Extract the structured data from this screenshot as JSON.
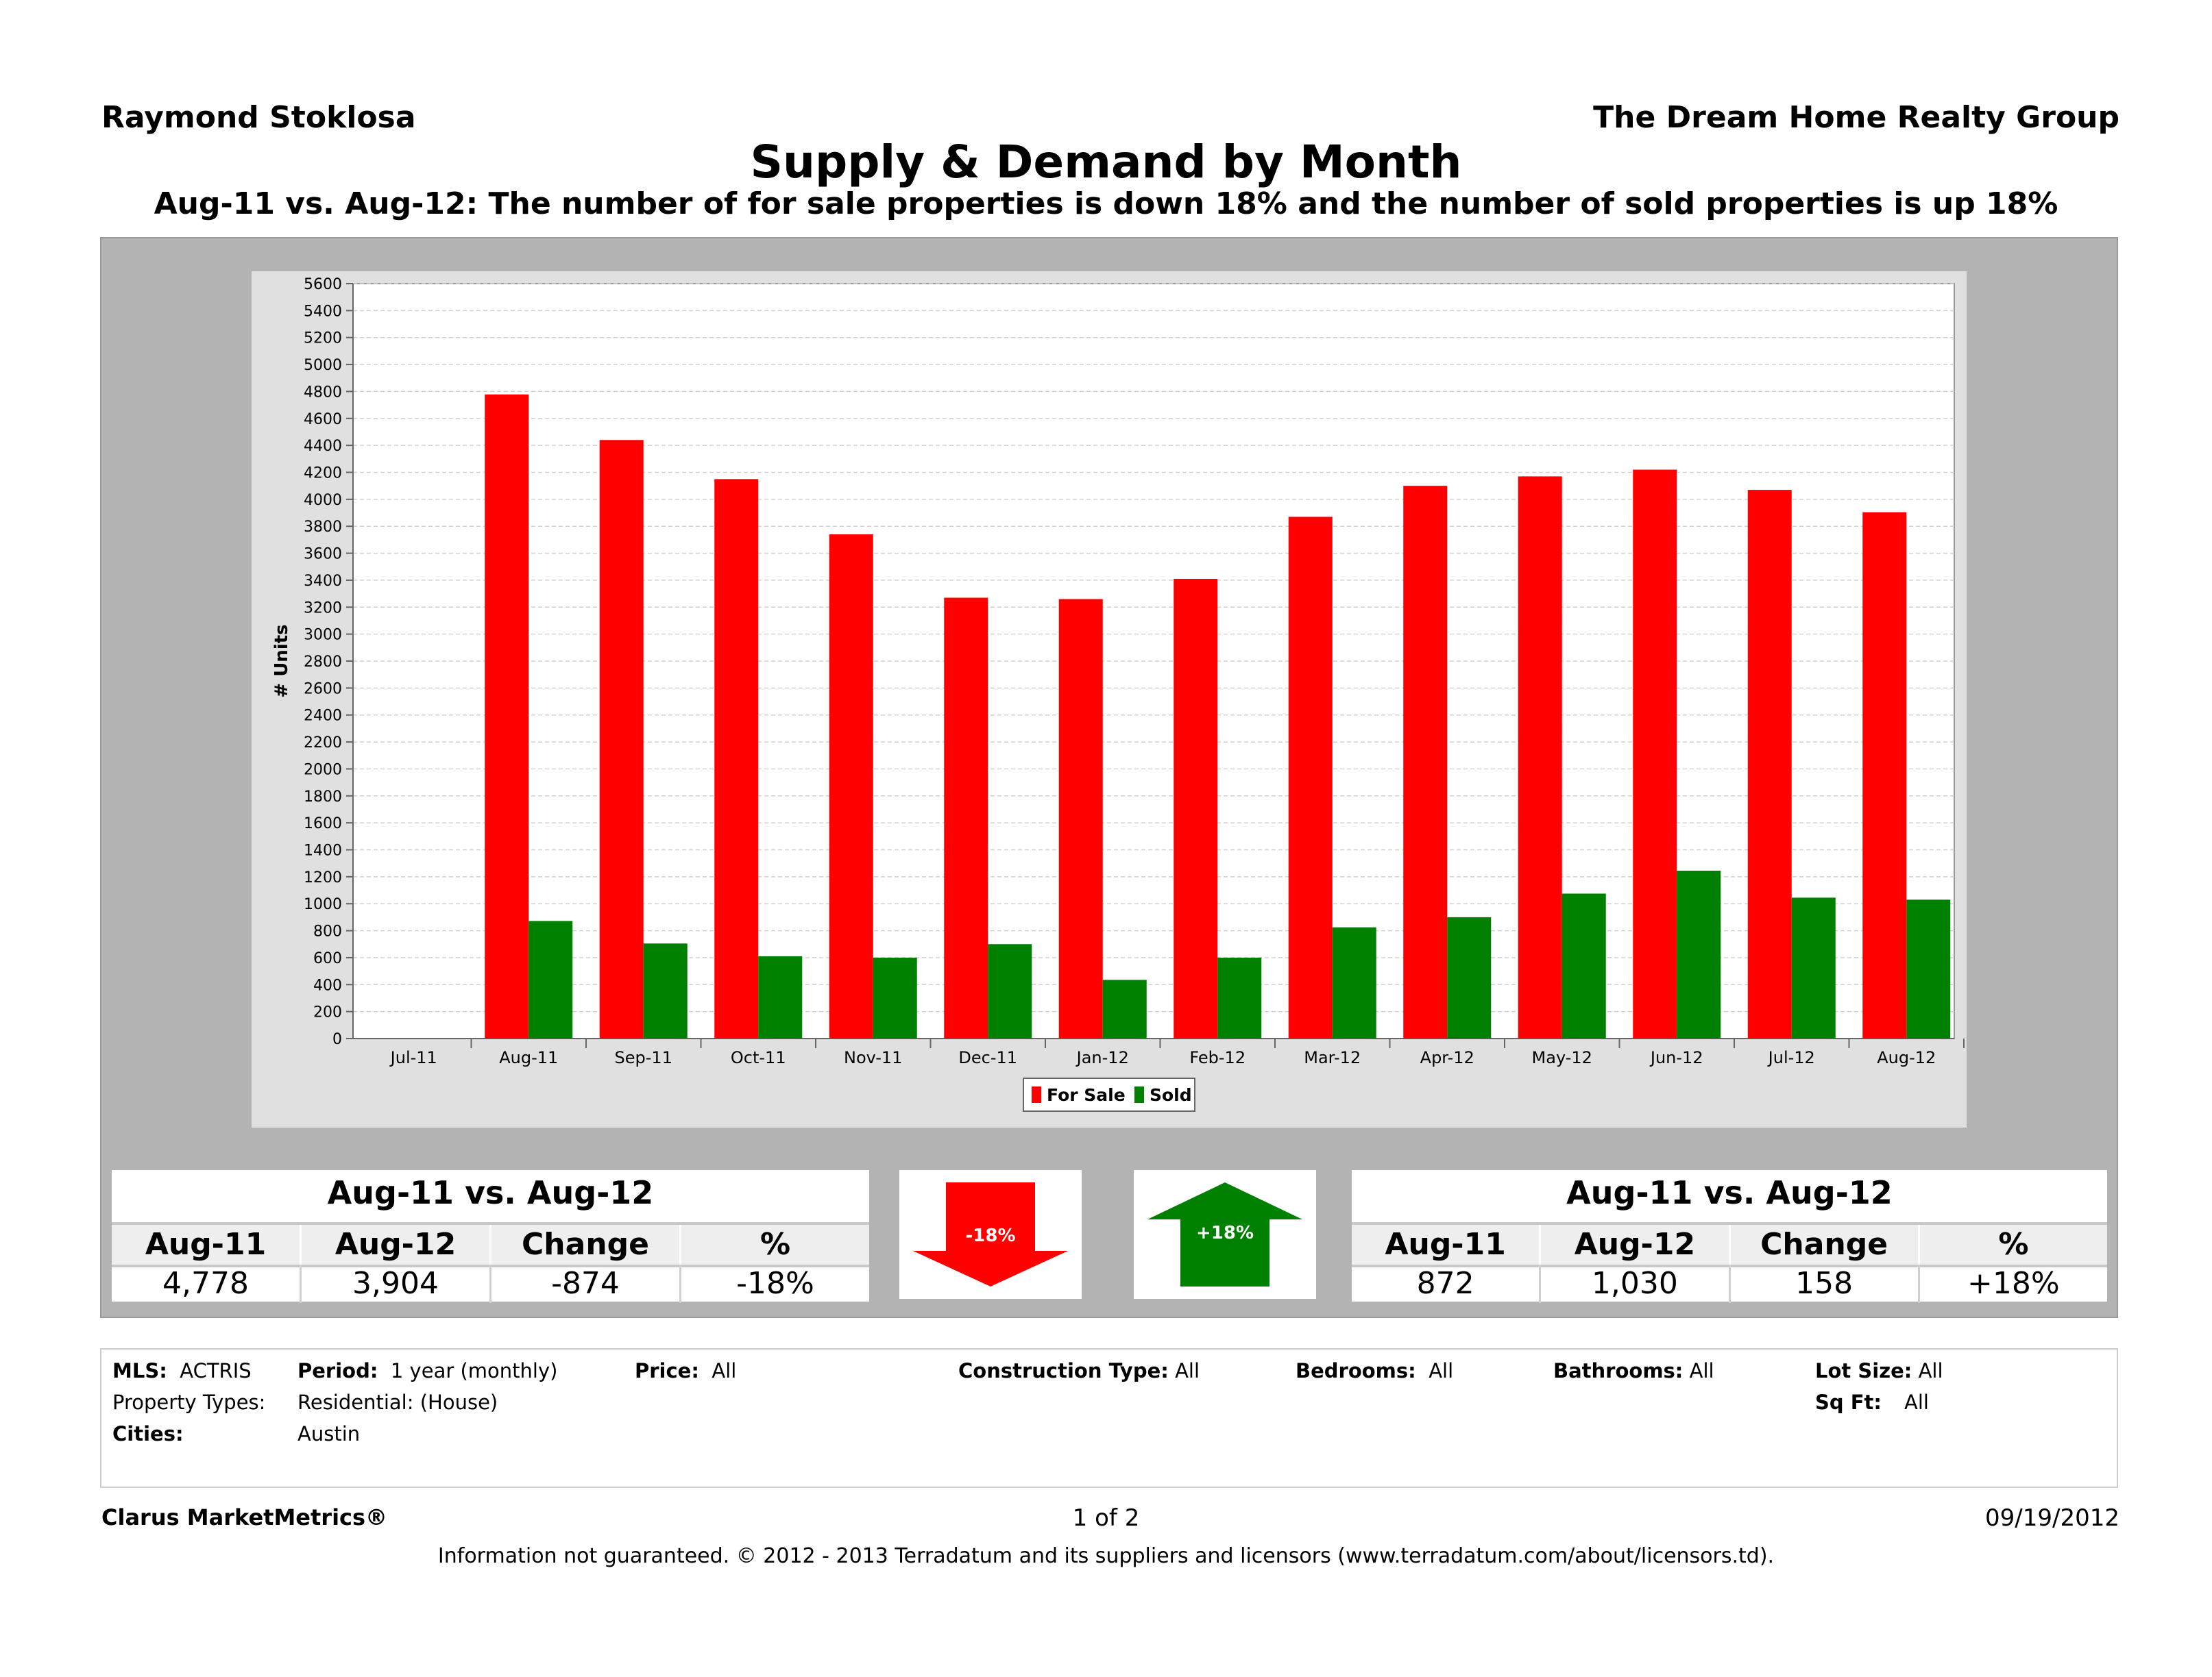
{
  "header": {
    "agent": "Raymond Stoklosa",
    "company": "The Dream Home Realty Group",
    "title": "Supply & Demand by Month",
    "subtitle": "Aug-11 vs. Aug-12:  The number of for sale properties is down 18% and the number of sold properties is up 18%"
  },
  "colors": {
    "for_sale": "#ff0000",
    "sold": "#008000",
    "panel": "#b3b3b3",
    "plot_bg": "#ffffff"
  },
  "chart_data": {
    "type": "bar",
    "ylabel": "# Units",
    "ylim": [
      0,
      5600
    ],
    "yticks": [
      0,
      200,
      400,
      600,
      800,
      1000,
      1200,
      1400,
      1600,
      1800,
      2000,
      2200,
      2400,
      2600,
      2800,
      3000,
      3200,
      3400,
      3600,
      3800,
      4000,
      4200,
      4400,
      4600,
      4800,
      5000,
      5200,
      5400,
      5600
    ],
    "categories": [
      "Jul-11",
      "Aug-11",
      "Sep-11",
      "Oct-11",
      "Nov-11",
      "Dec-11",
      "Jan-12",
      "Feb-12",
      "Mar-12",
      "Apr-12",
      "May-12",
      "Jun-12",
      "Jul-12",
      "Aug-12"
    ],
    "series": [
      {
        "name": "For Sale",
        "color": "#ff0000",
        "values": [
          null,
          4778,
          4440,
          4150,
          3740,
          3270,
          3260,
          3410,
          3870,
          4100,
          4170,
          4220,
          4070,
          3904
        ]
      },
      {
        "name": "Sold",
        "color": "#008000",
        "values": [
          null,
          872,
          705,
          610,
          600,
          700,
          435,
          600,
          825,
          900,
          1075,
          1245,
          1045,
          1030
        ]
      }
    ],
    "legend_position": "bottom",
    "grid": true
  },
  "summary_left": {
    "title": "Aug-11 vs. Aug-12",
    "headers": [
      "Aug-11",
      "Aug-12",
      "Change",
      "%"
    ],
    "values": [
      "4,778",
      "3,904",
      "-874",
      "-18%"
    ]
  },
  "summary_right": {
    "title": "Aug-11 vs. Aug-12",
    "headers": [
      "Aug-11",
      "Aug-12",
      "Change",
      "%"
    ],
    "values": [
      "872",
      "1,030",
      "158",
      "+18%"
    ]
  },
  "arrows": {
    "down_label": "-18%",
    "down_icon": "down-arrow-icon",
    "down_color": "#ff0000",
    "up_label": "+18%",
    "up_icon": "up-arrow-icon",
    "up_color": "#008000"
  },
  "filters": {
    "mls_label": "MLS:",
    "mls_value": "ACTRIS",
    "period_label": "Period:",
    "period_value": "1 year (monthly)",
    "price_label": "Price:",
    "price_value": "All",
    "construction_label": "Construction Type:",
    "construction_value": "All",
    "bedrooms_label": "Bedrooms:",
    "bedrooms_value": "All",
    "bathrooms_label": "Bathrooms:",
    "bathrooms_value": "All",
    "lotsize_label": "Lot Size:",
    "lotsize_value": "All",
    "proptype_label": "Property Types:",
    "proptype_value": "Residential: (House)",
    "sqft_label": "Sq Ft:",
    "sqft_value": "All",
    "cities_label": "Cities:",
    "cities_value": "Austin"
  },
  "footer": {
    "brand": "Clarus MarketMetrics®",
    "page": "1 of 2",
    "date": "09/19/2012",
    "disclaimer": "Information not guaranteed.  © 2012 - 2013 Terradatum and its suppliers and licensors (www.terradatum.com/about/licensors.td)."
  }
}
